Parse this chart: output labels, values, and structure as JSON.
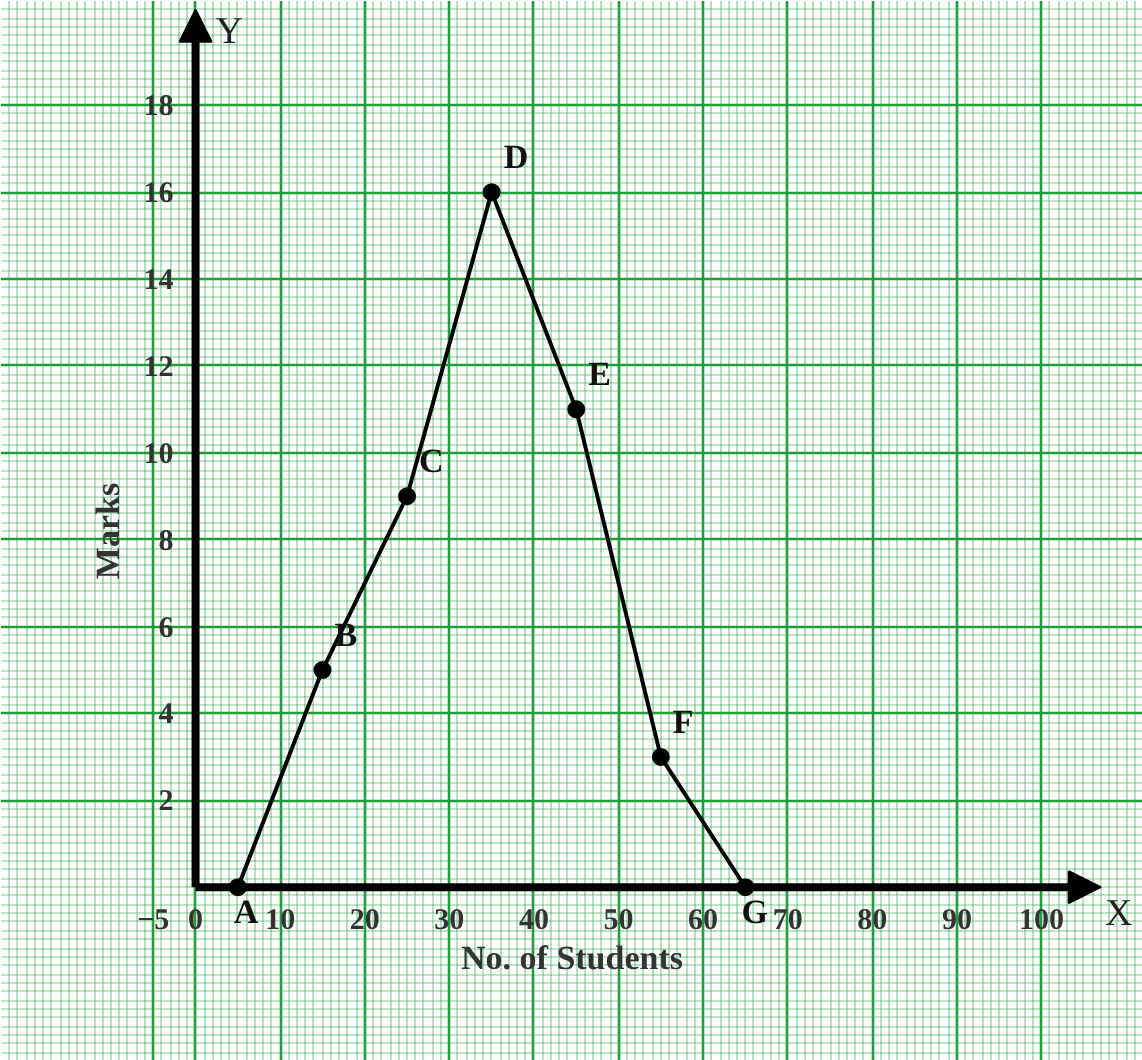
{
  "chart_data": {
    "type": "line",
    "xlabel": "No. of Students",
    "ylabel": "Marks",
    "x": [
      5,
      15,
      25,
      35,
      45,
      55,
      65
    ],
    "series": [
      {
        "color": "#000000",
        "values": [
          0,
          5,
          9,
          16,
          11,
          3,
          0
        ]
      }
    ],
    "marker": "circle",
    "line_style": "solid",
    "grid": true,
    "xlim": [
      -23,
      112
    ],
    "ylim": [
      -4,
      20.4
    ],
    "xticks": [
      -5,
      0,
      10,
      20,
      30,
      40,
      50,
      60,
      70,
      80,
      90,
      100
    ],
    "yticks": [
      2,
      4,
      6,
      8,
      10,
      12,
      14,
      16,
      18
    ],
    "annotations": [
      "X",
      "Y",
      {
        "text": "A",
        "x": 5,
        "y": 0
      },
      {
        "text": "B",
        "x": 15,
        "y": 5
      },
      {
        "text": "C",
        "x": 25,
        "y": 9
      },
      {
        "text": "D",
        "x": 35,
        "y": 16
      },
      {
        "text": "E",
        "x": 45,
        "y": 11
      },
      {
        "text": "F",
        "x": 55,
        "y": 3
      },
      {
        "text": "G",
        "x": 65,
        "y": 0
      }
    ]
  }
}
